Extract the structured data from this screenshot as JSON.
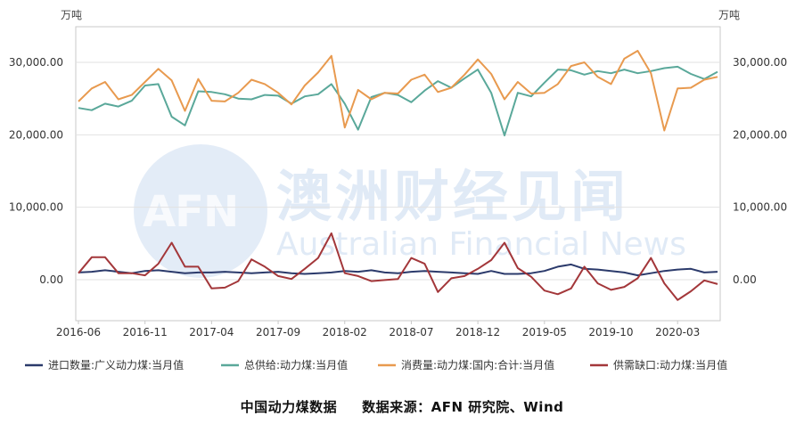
{
  "units": {
    "left": "万吨",
    "right": "万吨"
  },
  "caption": {
    "title": "中国动力煤数据",
    "source": "数据来源：AFN 研究院、Wind"
  },
  "watermark": {
    "logo": "AFN",
    "chinese": "澳洲财经见闻",
    "english": "Australian Financial News"
  },
  "chart_data": {
    "type": "line",
    "ylim": [
      0,
      35000
    ],
    "yticks": [
      "0.00",
      "10,000.00",
      "20,000.00",
      "30,000.00"
    ],
    "ytick_values": [
      0,
      10000,
      20000,
      30000
    ],
    "xtick_labels": [
      "2016-06",
      "2016-11",
      "2017-04",
      "2017-09",
      "2018-02",
      "2018-07",
      "2018-12",
      "2019-05",
      "2019-10",
      "2020-03"
    ],
    "xtick_index": [
      0,
      5,
      10,
      15,
      20,
      25,
      30,
      35,
      40,
      45
    ],
    "x": [
      "2016-06",
      "2016-07",
      "2016-08",
      "2016-09",
      "2016-10",
      "2016-11",
      "2016-12",
      "2017-01",
      "2017-02",
      "2017-03",
      "2017-04",
      "2017-05",
      "2017-06",
      "2017-07",
      "2017-08",
      "2017-09",
      "2017-10",
      "2017-11",
      "2017-12",
      "2018-01",
      "2018-02",
      "2018-03",
      "2018-04",
      "2018-05",
      "2018-06",
      "2018-07",
      "2018-08",
      "2018-09",
      "2018-10",
      "2018-11",
      "2018-12",
      "2019-01",
      "2019-02",
      "2019-03",
      "2019-04",
      "2019-05",
      "2019-06",
      "2019-07",
      "2019-08",
      "2019-09",
      "2019-10",
      "2019-11",
      "2019-12",
      "2020-01",
      "2020-02",
      "2020-03",
      "2020-04",
      "2020-05",
      "2020-06"
    ],
    "grid": true,
    "legend_position": "bottom",
    "series": [
      {
        "name": "进口数量:广义动力煤:当月值",
        "color": "#2b3a6b",
        "values": [
          1000,
          1100,
          1300,
          1100,
          900,
          1200,
          1300,
          1100,
          900,
          1000,
          1000,
          1100,
          1000,
          900,
          1000,
          1100,
          900,
          800,
          900,
          1000,
          1200,
          1100,
          1300,
          1000,
          900,
          1100,
          1200,
          1100,
          1000,
          900,
          800,
          1200,
          800,
          800,
          900,
          1200,
          1800,
          2100,
          1500,
          1400,
          1200,
          1000,
          600,
          900,
          1200,
          1400,
          1500,
          1000,
          1100
        ]
      },
      {
        "name": "总供给:动力煤:当月值",
        "color": "#5aa89a",
        "values": [
          23700,
          23400,
          24300,
          23900,
          24700,
          26800,
          27000,
          22500,
          21300,
          26000,
          25900,
          25600,
          25000,
          24900,
          25500,
          25400,
          24300,
          25300,
          25600,
          27000,
          24300,
          20700,
          25200,
          25800,
          25500,
          24500,
          26100,
          27400,
          26500,
          27800,
          29000,
          25800,
          19900,
          25800,
          25300,
          27200,
          29000,
          28900,
          28300,
          28800,
          28500,
          29000,
          28500,
          28800,
          29200,
          29400,
          28400,
          27700,
          28700
        ]
      },
      {
        "name": "消费量:动力煤:国内:合计:当月值",
        "color": "#e89a4f",
        "values": [
          24600,
          26400,
          27300,
          24900,
          25500,
          27300,
          29100,
          27500,
          23300,
          27700,
          24700,
          24600,
          25800,
          27600,
          27000,
          25800,
          24200,
          26800,
          28600,
          30900,
          21000,
          26200,
          24900,
          25800,
          25700,
          27600,
          28300,
          25900,
          26500,
          28300,
          30400,
          28400,
          24900,
          27300,
          25700,
          25800,
          27000,
          29500,
          30000,
          28000,
          27000,
          30500,
          31600,
          28500,
          20600,
          26400,
          26500,
          27600,
          28000
        ]
      },
      {
        "name": "供需缺口:动力煤:当月值",
        "color": "#a3373a",
        "values": [
          900,
          3100,
          3100,
          900,
          900,
          600,
          2200,
          5100,
          1800,
          1800,
          -1200,
          -1100,
          -200,
          2800,
          1800,
          500,
          100,
          1500,
          3000,
          6400,
          900,
          500,
          -200,
          -50,
          100,
          3000,
          2200,
          -1700,
          200,
          500,
          1500,
          2700,
          5100,
          1600,
          400,
          -1500,
          -2000,
          -1200,
          1800,
          -500,
          -1400,
          -1000,
          200,
          3000,
          -500,
          -2800,
          -1600,
          -100,
          -600
        ]
      }
    ]
  }
}
